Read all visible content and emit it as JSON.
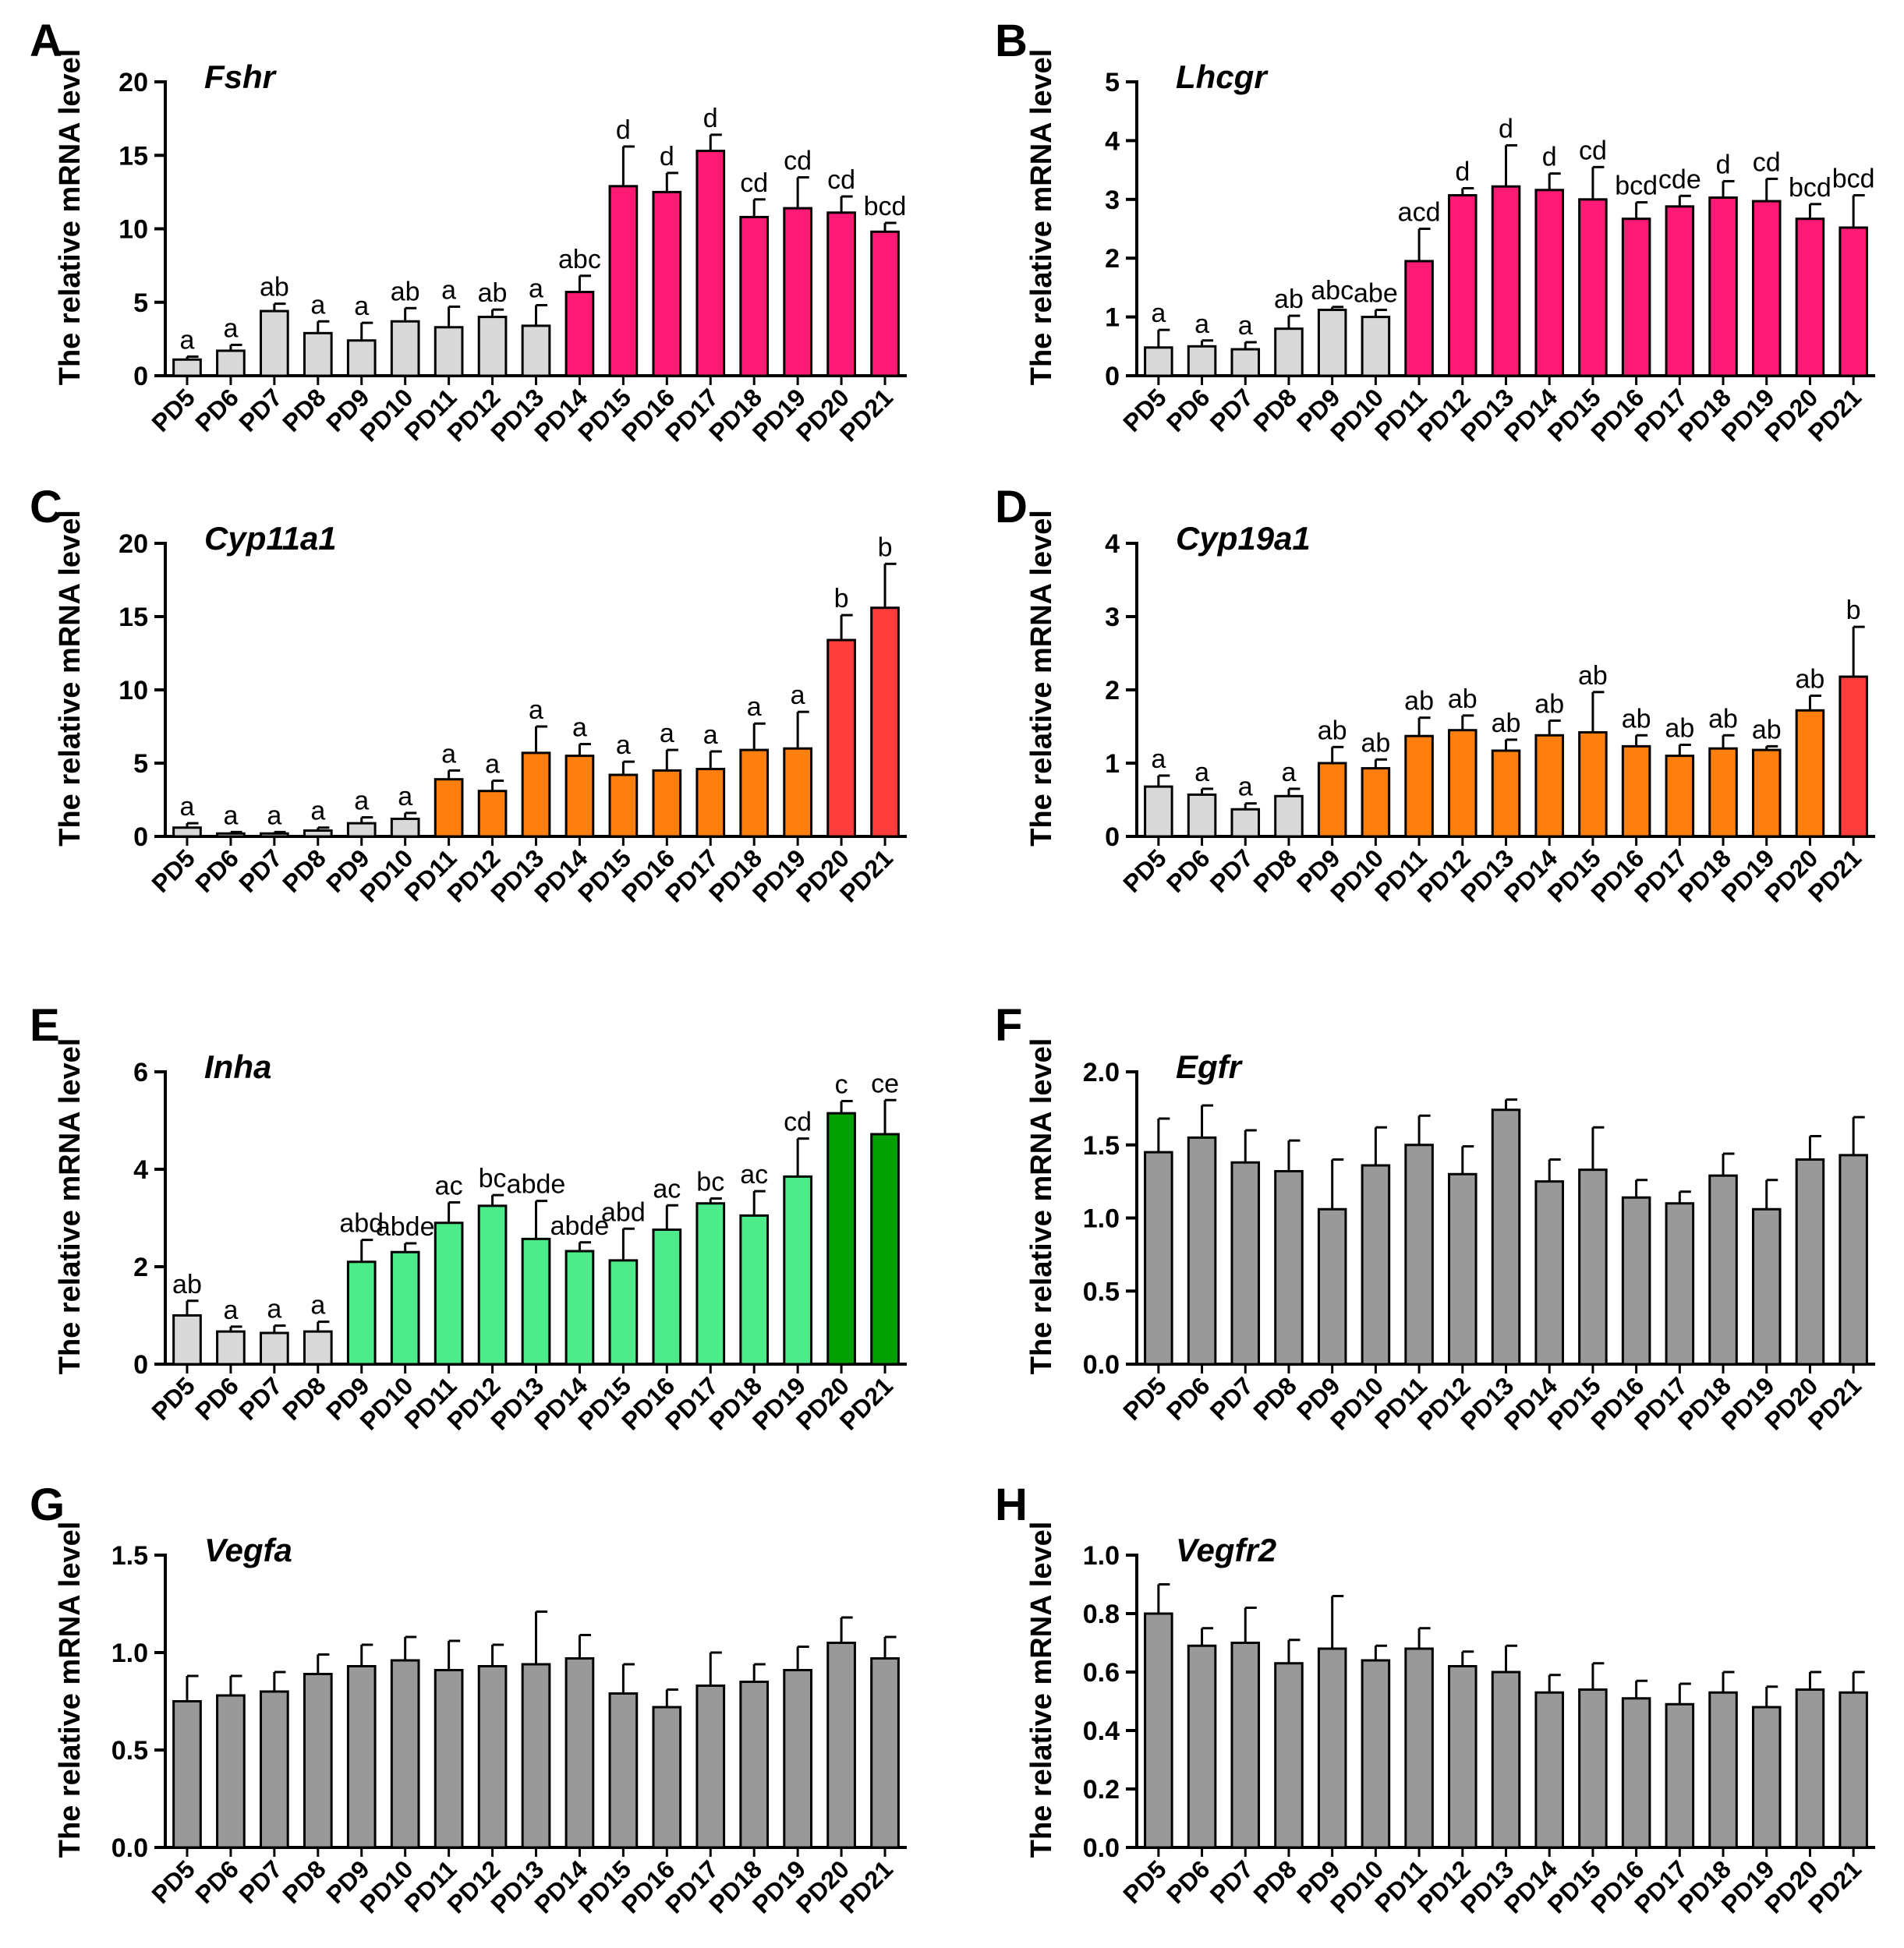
{
  "categories": [
    "PD5",
    "PD6",
    "PD7",
    "PD8",
    "PD9",
    "PD10",
    "PD11",
    "PD12",
    "PD13",
    "PD14",
    "PD15",
    "PD16",
    "PD17",
    "PD18",
    "PD19",
    "PD20",
    "PD21"
  ],
  "colors": {
    "gray": "#d9d9d9",
    "darkgray": "#999999",
    "magenta": "#ff1a75",
    "orange": "#ff7f0e",
    "red": "#ff3d3d",
    "lightgreen": "#4deb8a",
    "green": "#00a000"
  },
  "chart_data": [
    {
      "panel": "A",
      "gene": "Fshr",
      "type": "bar",
      "ylabel": "The relative mRNA level",
      "ylim": [
        0,
        20
      ],
      "yticks": [
        "0",
        "5",
        "10",
        "15",
        "20"
      ],
      "values": [
        1.1,
        1.7,
        4.4,
        2.9,
        2.4,
        3.7,
        3.3,
        4.0,
        3.4,
        5.7,
        12.9,
        12.5,
        15.3,
        10.8,
        11.4,
        11.1,
        9.8
      ],
      "errors": [
        0.2,
        0.4,
        0.5,
        0.8,
        1.2,
        0.9,
        1.4,
        0.5,
        1.4,
        1.1,
        2.7,
        1.3,
        1.1,
        1.2,
        2.1,
        1.1,
        0.6
      ],
      "letters": [
        "a",
        "a",
        "ab",
        "a",
        "a",
        "ab",
        "a",
        "ab",
        "a",
        "abc",
        "d",
        "d",
        "d",
        "cd",
        "cd",
        "cd",
        "bcd"
      ],
      "colors": [
        "gray",
        "gray",
        "gray",
        "gray",
        "gray",
        "gray",
        "gray",
        "gray",
        "gray",
        "magenta",
        "magenta",
        "magenta",
        "magenta",
        "magenta",
        "magenta",
        "magenta",
        "magenta"
      ]
    },
    {
      "panel": "B",
      "gene": "Lhcgr",
      "type": "bar",
      "ylabel": "The relative mRNA level",
      "ylim": [
        0,
        5
      ],
      "yticks": [
        "0",
        "1",
        "2",
        "3",
        "4",
        "5"
      ],
      "values": [
        0.48,
        0.5,
        0.45,
        0.8,
        1.12,
        1.0,
        1.95,
        3.07,
        3.22,
        3.16,
        3.0,
        2.67,
        2.88,
        3.03,
        2.97,
        2.67,
        2.52
      ],
      "errors": [
        0.3,
        0.1,
        0.12,
        0.22,
        0.05,
        0.12,
        0.55,
        0.12,
        0.7,
        0.28,
        0.55,
        0.28,
        0.18,
        0.28,
        0.38,
        0.25,
        0.55
      ],
      "letters": [
        "a",
        "a",
        "a",
        "ab",
        "abc",
        "abe",
        "acd",
        "d",
        "d",
        "d",
        "cd",
        "bcd",
        "cde",
        "d",
        "cd",
        "bcd",
        "bcd"
      ],
      "colors": [
        "gray",
        "gray",
        "gray",
        "gray",
        "gray",
        "gray",
        "magenta",
        "magenta",
        "magenta",
        "magenta",
        "magenta",
        "magenta",
        "magenta",
        "magenta",
        "magenta",
        "magenta",
        "magenta"
      ]
    },
    {
      "panel": "C",
      "gene": "Cyp11a1",
      "type": "bar",
      "ylabel": "The relative mRNA level",
      "ylim": [
        0,
        20
      ],
      "yticks": [
        "0",
        "5",
        "10",
        "15",
        "20"
      ],
      "values": [
        0.6,
        0.2,
        0.2,
        0.4,
        0.9,
        1.2,
        3.9,
        3.1,
        5.7,
        5.5,
        4.2,
        4.5,
        4.6,
        5.9,
        6.0,
        13.4,
        15.6
      ],
      "errors": [
        0.3,
        0.1,
        0.1,
        0.2,
        0.4,
        0.4,
        0.6,
        0.7,
        1.8,
        0.8,
        0.9,
        1.4,
        1.2,
        1.8,
        2.5,
        1.7,
        3.0
      ],
      "letters": [
        "a",
        "a",
        "a",
        "a",
        "a",
        "a",
        "a",
        "a",
        "a",
        "a",
        "a",
        "a",
        "a",
        "a",
        "a",
        "b",
        "b"
      ],
      "colors": [
        "gray",
        "gray",
        "gray",
        "gray",
        "gray",
        "gray",
        "orange",
        "orange",
        "orange",
        "orange",
        "orange",
        "orange",
        "orange",
        "orange",
        "orange",
        "red",
        "red"
      ]
    },
    {
      "panel": "D",
      "gene": "Cyp19a1",
      "type": "bar",
      "ylabel": "The relative mRNA level",
      "ylim": [
        0,
        4
      ],
      "yticks": [
        "0",
        "1",
        "2",
        "3",
        "4"
      ],
      "values": [
        0.68,
        0.57,
        0.37,
        0.55,
        1.0,
        0.93,
        1.37,
        1.45,
        1.17,
        1.38,
        1.42,
        1.23,
        1.1,
        1.2,
        1.18,
        1.72,
        2.18
      ],
      "errors": [
        0.15,
        0.08,
        0.08,
        0.1,
        0.22,
        0.12,
        0.25,
        0.2,
        0.15,
        0.2,
        0.55,
        0.15,
        0.15,
        0.18,
        0.05,
        0.2,
        0.68
      ],
      "letters": [
        "a",
        "a",
        "a",
        "a",
        "ab",
        "ab",
        "ab",
        "ab",
        "ab",
        "ab",
        "ab",
        "ab",
        "ab",
        "ab",
        "ab",
        "ab",
        "b"
      ],
      "colors": [
        "gray",
        "gray",
        "gray",
        "gray",
        "orange",
        "orange",
        "orange",
        "orange",
        "orange",
        "orange",
        "orange",
        "orange",
        "orange",
        "orange",
        "orange",
        "orange",
        "red"
      ]
    },
    {
      "panel": "E",
      "gene": "Inha",
      "type": "bar",
      "ylabel": "The relative mRNA level",
      "ylim": [
        0,
        6
      ],
      "yticks": [
        "0",
        "2",
        "4",
        "6"
      ],
      "values": [
        1.0,
        0.67,
        0.64,
        0.67,
        2.1,
        2.3,
        2.9,
        3.25,
        2.57,
        2.32,
        2.13,
        2.76,
        3.3,
        3.05,
        3.85,
        5.15,
        4.72
      ],
      "errors": [
        0.3,
        0.1,
        0.15,
        0.2,
        0.45,
        0.18,
        0.42,
        0.22,
        0.78,
        0.18,
        0.65,
        0.5,
        0.1,
        0.5,
        0.78,
        0.25,
        0.7
      ],
      "letters": [
        "ab",
        "a",
        "a",
        "a",
        "abd",
        "abde",
        "ac",
        "bc",
        "abde",
        "abde",
        "abd",
        "ac",
        "bc",
        "ac",
        "cd",
        "c",
        "ce"
      ],
      "colors": [
        "gray",
        "gray",
        "gray",
        "gray",
        "lightgreen",
        "lightgreen",
        "lightgreen",
        "lightgreen",
        "lightgreen",
        "lightgreen",
        "lightgreen",
        "lightgreen",
        "lightgreen",
        "lightgreen",
        "lightgreen",
        "green",
        "green"
      ]
    },
    {
      "panel": "F",
      "gene": "Egfr",
      "type": "bar",
      "ylabel": "The relative mRNA level",
      "ylim": [
        0,
        2
      ],
      "yticks": [
        "0.0",
        "0.5",
        "1.0",
        "1.5",
        "2.0"
      ],
      "values": [
        1.45,
        1.55,
        1.38,
        1.32,
        1.06,
        1.36,
        1.5,
        1.3,
        1.74,
        1.25,
        1.33,
        1.14,
        1.1,
        1.29,
        1.06,
        1.4,
        1.43
      ],
      "errors": [
        0.23,
        0.22,
        0.22,
        0.21,
        0.34,
        0.26,
        0.2,
        0.19,
        0.07,
        0.15,
        0.29,
        0.12,
        0.08,
        0.15,
        0.2,
        0.16,
        0.26
      ],
      "letters": [],
      "colors": [
        "darkgray",
        "darkgray",
        "darkgray",
        "darkgray",
        "darkgray",
        "darkgray",
        "darkgray",
        "darkgray",
        "darkgray",
        "darkgray",
        "darkgray",
        "darkgray",
        "darkgray",
        "darkgray",
        "darkgray",
        "darkgray",
        "darkgray"
      ]
    },
    {
      "panel": "G",
      "gene": "Vegfa",
      "type": "bar",
      "ylabel": "The relative mRNA level",
      "ylim": [
        0,
        1.5
      ],
      "yticks": [
        "0.0",
        "0.5",
        "1.0",
        "1.5"
      ],
      "values": [
        0.75,
        0.78,
        0.8,
        0.89,
        0.93,
        0.96,
        0.91,
        0.93,
        0.94,
        0.97,
        0.79,
        0.72,
        0.83,
        0.85,
        0.91,
        1.05,
        0.97
      ],
      "errors": [
        0.13,
        0.1,
        0.1,
        0.1,
        0.11,
        0.12,
        0.15,
        0.11,
        0.27,
        0.12,
        0.15,
        0.09,
        0.17,
        0.09,
        0.12,
        0.13,
        0.11
      ],
      "letters": [],
      "colors": [
        "darkgray",
        "darkgray",
        "darkgray",
        "darkgray",
        "darkgray",
        "darkgray",
        "darkgray",
        "darkgray",
        "darkgray",
        "darkgray",
        "darkgray",
        "darkgray",
        "darkgray",
        "darkgray",
        "darkgray",
        "darkgray",
        "darkgray"
      ]
    },
    {
      "panel": "H",
      "gene": "Vegfr2",
      "type": "bar",
      "ylabel": "The relative mRNA level",
      "ylim": [
        0,
        1.0
      ],
      "yticks": [
        "0.0",
        "0.2",
        "0.4",
        "0.6",
        "0.8",
        "1.0"
      ],
      "values": [
        0.8,
        0.69,
        0.7,
        0.63,
        0.68,
        0.64,
        0.68,
        0.62,
        0.6,
        0.53,
        0.54,
        0.51,
        0.49,
        0.53,
        0.48,
        0.54,
        0.53
      ],
      "errors": [
        0.1,
        0.06,
        0.12,
        0.08,
        0.18,
        0.05,
        0.07,
        0.05,
        0.09,
        0.06,
        0.09,
        0.06,
        0.07,
        0.07,
        0.07,
        0.06,
        0.07
      ],
      "letters": [],
      "colors": [
        "darkgray",
        "darkgray",
        "darkgray",
        "darkgray",
        "darkgray",
        "darkgray",
        "darkgray",
        "darkgray",
        "darkgray",
        "darkgray",
        "darkgray",
        "darkgray",
        "darkgray",
        "darkgray",
        "darkgray",
        "darkgray",
        "darkgray"
      ]
    }
  ]
}
